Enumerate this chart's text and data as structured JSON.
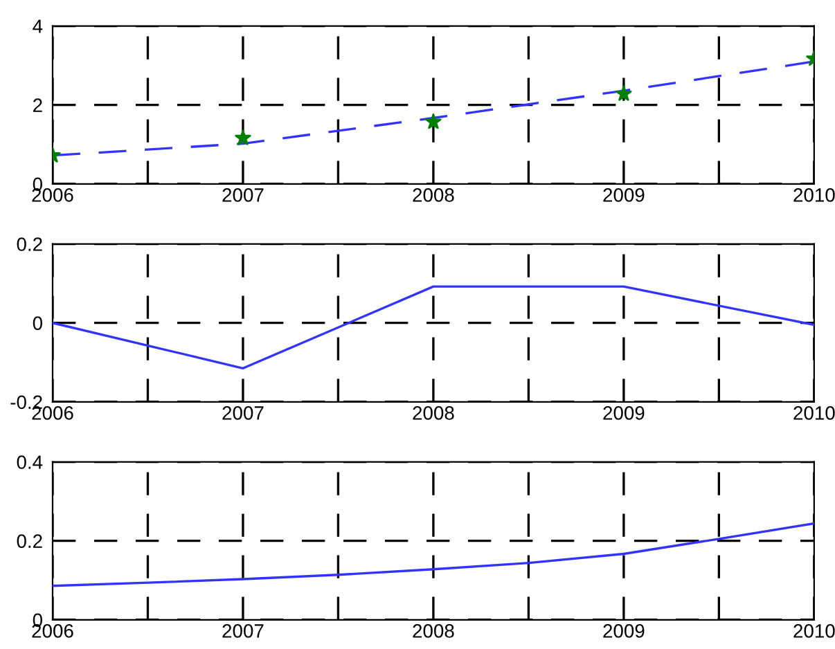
{
  "chart_data": [
    {
      "type": "line",
      "xlim": [
        2006,
        2010
      ],
      "xticks": [
        2006,
        {
          "value": 2006.5,
          "label": null
        },
        2007,
        {
          "value": 2007.5,
          "label": null
        },
        2008,
        {
          "value": 2008.5,
          "label": null
        },
        2009,
        {
          "value": 2009.5,
          "label": null
        },
        2010
      ],
      "ylim": [
        0,
        4
      ],
      "yticks": [
        0,
        2,
        4
      ],
      "grid": true,
      "series": [
        {
          "color": "#3333ff",
          "line_style": "dashed",
          "x": [
            2006,
            2007,
            2008,
            2009,
            2010
          ],
          "values": [
            0.72,
            1.02,
            1.67,
            2.36,
            3.1
          ]
        },
        {
          "type": "scatter",
          "color": "#008000",
          "marker": "star",
          "x": [
            2006,
            2007,
            2008,
            2009,
            2010
          ],
          "values": [
            0.72,
            1.16,
            1.57,
            2.28,
            3.17
          ]
        }
      ]
    },
    {
      "type": "line",
      "xlim": [
        2006,
        2010
      ],
      "xticks": [
        2006,
        {
          "value": 2006.5,
          "label": null
        },
        2007,
        {
          "value": 2007.5,
          "label": null
        },
        2008,
        {
          "value": 2008.5,
          "label": null
        },
        2009,
        {
          "value": 2009.5,
          "label": null
        },
        2010
      ],
      "ylim": [
        -0.2,
        0.2
      ],
      "yticks": [
        -0.2,
        0,
        0.2
      ],
      "grid": true,
      "series": [
        {
          "color": "#3333ff",
          "line_style": "solid",
          "x": [
            2006,
            2007,
            2008,
            2009,
            2010
          ],
          "values": [
            0,
            -0.115,
            0.092,
            0.092,
            -0.005
          ]
        }
      ]
    },
    {
      "type": "line",
      "xlim": [
        2006,
        2010
      ],
      "xticks": [
        2006,
        {
          "value": 2006.5,
          "label": null
        },
        2007,
        {
          "value": 2007.5,
          "label": null
        },
        2008,
        {
          "value": 2008.5,
          "label": null
        },
        2009,
        {
          "value": 2009.5,
          "label": null
        },
        2010
      ],
      "ylim": [
        0,
        0.4
      ],
      "yticks": [
        0,
        0.2,
        0.4
      ],
      "grid": true,
      "series": [
        {
          "color": "#3333ff",
          "line_style": "solid",
          "x": [
            2006,
            2006.5,
            2007,
            2007.5,
            2008,
            2008.5,
            2009,
            2009.5,
            2010
          ],
          "values": [
            0.086,
            0.094,
            0.103,
            0.114,
            0.128,
            0.144,
            0.167,
            0.205,
            0.244
          ]
        }
      ]
    }
  ]
}
